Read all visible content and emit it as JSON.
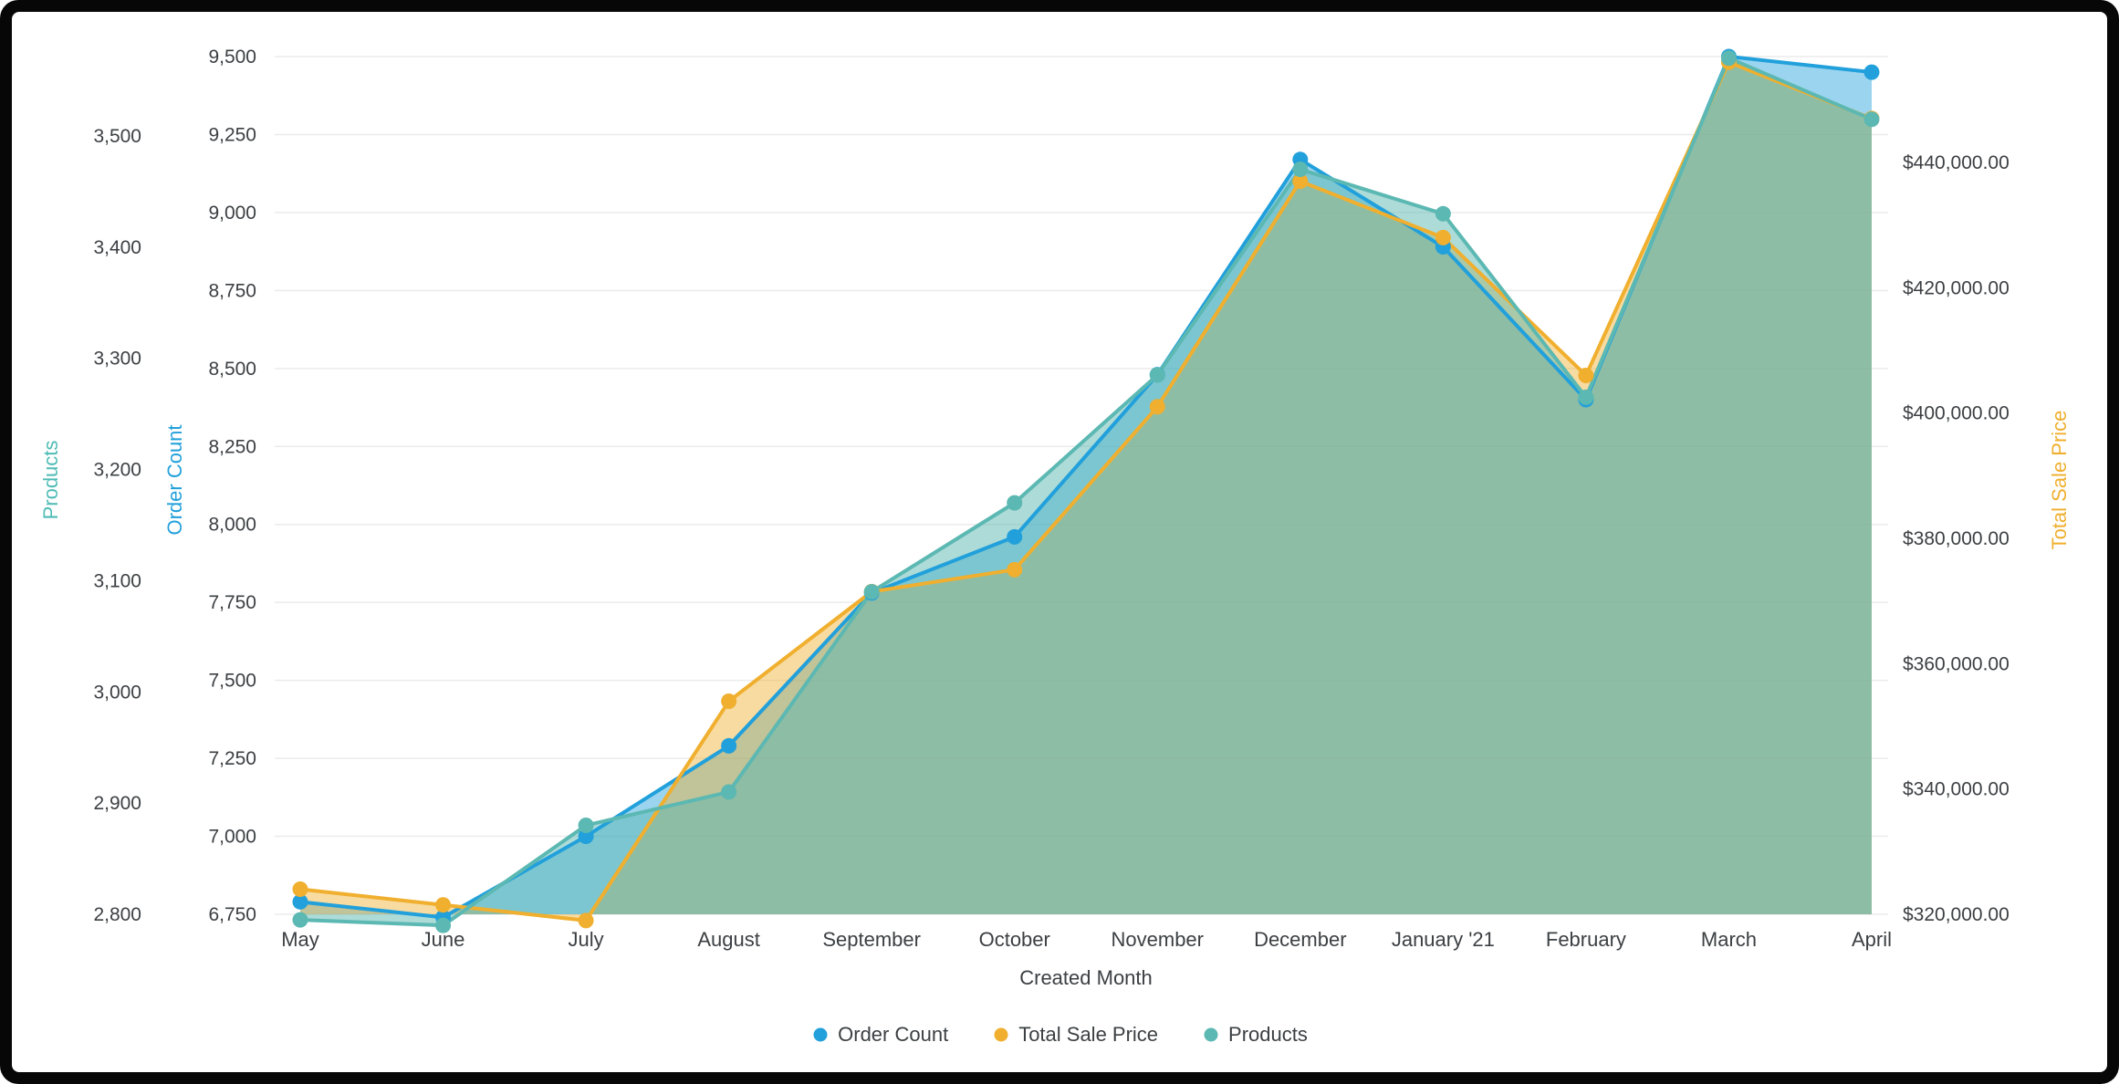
{
  "window": {
    "frame_color": "#070707",
    "panel_color": "#ffffff"
  },
  "chart_data": {
    "type": "area",
    "x_axis": {
      "title": "Created Month",
      "categories": [
        "May",
        "June",
        "July",
        "August",
        "September",
        "October",
        "November",
        "December",
        "January '21",
        "February",
        "March",
        "April"
      ]
    },
    "axes": {
      "products": {
        "title": "Products",
        "color": "#4FBCB5",
        "min": 2800,
        "max": 3500,
        "tick_step": 100,
        "ticks": [
          "2,800",
          "2,900",
          "3,000",
          "3,100",
          "3,200",
          "3,300",
          "3,400",
          "3,500"
        ]
      },
      "order_count": {
        "title": "Order Count",
        "color": "#21A0DB",
        "min": 6750,
        "max": 9500,
        "tick_step": 250,
        "ticks": [
          "6,750",
          "7,000",
          "7,250",
          "7,500",
          "7,750",
          "8,000",
          "8,250",
          "8,500",
          "8,750",
          "9,000",
          "9,250",
          "9,500"
        ]
      },
      "total_sale_price": {
        "title": "Total Sale Price",
        "color": "#F0AF2E",
        "min": 320000,
        "max": 440000,
        "tick_step": 20000,
        "ticks": [
          "$320,000.00",
          "$340,000.00",
          "$360,000.00",
          "$380,000.00",
          "$400,000.00",
          "$420,000.00",
          "$440,000.00"
        ]
      }
    },
    "series": [
      {
        "name": "Order Count",
        "axis": "order_count",
        "color": "#21A0DB",
        "fill_opacity": 0.45,
        "values": [
          6790,
          6740,
          7000,
          7290,
          7780,
          7960,
          8480,
          9170,
          8890,
          8400,
          9500,
          9450
        ]
      },
      {
        "name": "Total Sale Price",
        "axis": "total_sale_price",
        "color": "#F0AF2E",
        "fill_opacity": 0.45,
        "values": [
          324000,
          321500,
          319000,
          354000,
          371500,
          375000,
          401000,
          437000,
          428000,
          406000,
          456000,
          447000
        ]
      },
      {
        "name": "Products",
        "axis": "products",
        "color": "#5CB8B2",
        "fill_opacity": 0.5,
        "values": [
          2795,
          2790,
          2880,
          2910,
          3090,
          3170,
          3285,
          3470,
          3430,
          3265,
          3570,
          3515
        ]
      }
    ],
    "legend": {
      "position": "bottom",
      "items": [
        "Order Count",
        "Total Sale Price",
        "Products"
      ]
    },
    "style": {
      "grid_color": "#ebebeb",
      "tick_color": "#3c4043"
    }
  }
}
